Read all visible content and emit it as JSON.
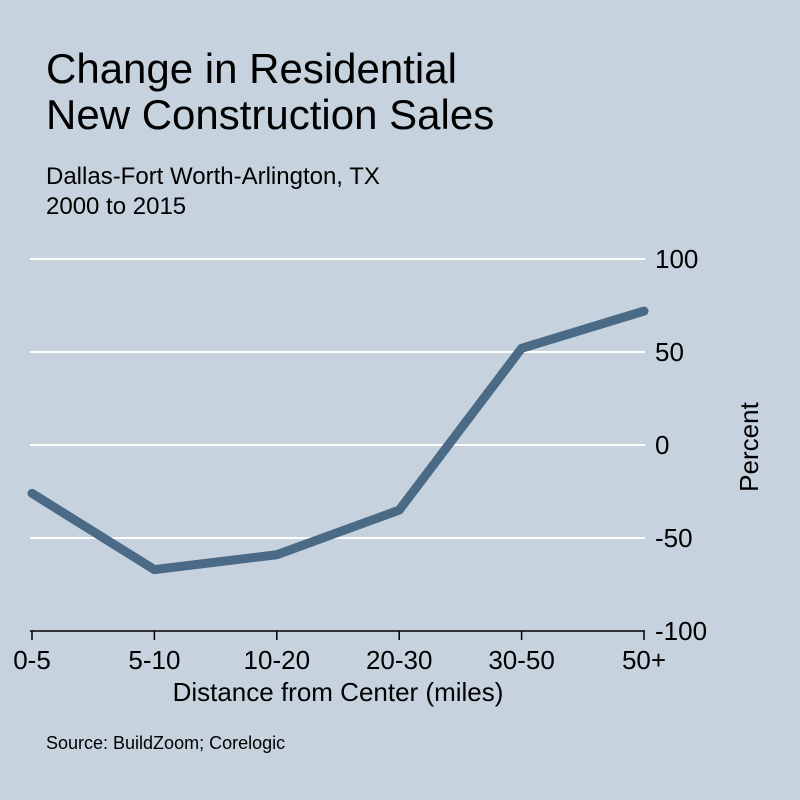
{
  "title_lines": [
    "Change in Residential",
    "New Construction Sales"
  ],
  "subtitle_lines": [
    "Dallas-Fort Worth-Arlington, TX",
    "2000 to 2015"
  ],
  "source": "Source: BuildZoom; Corelogic",
  "colors": {
    "background": "#c6d3df",
    "line": "#4a6a85",
    "grid": "#ffffff",
    "axis": "#000000"
  },
  "chart_data": {
    "type": "line",
    "title": "Change in Residential New Construction Sales",
    "subtitle": "Dallas-Fort Worth-Arlington, TX 2000 to 2015",
    "xlabel": "Distance from Center (miles)",
    "ylabel": "Percent",
    "categories": [
      "0-5",
      "5-10",
      "10-20",
      "20-30",
      "30-50",
      "50+"
    ],
    "series": [
      {
        "values": [
          -26,
          -67,
          -59,
          -35,
          52,
          72
        ]
      }
    ],
    "ylim": [
      -100,
      100
    ],
    "yticks": [
      100,
      50,
      0,
      -50,
      -100
    ],
    "grid": true,
    "y_axis_side": "right"
  }
}
